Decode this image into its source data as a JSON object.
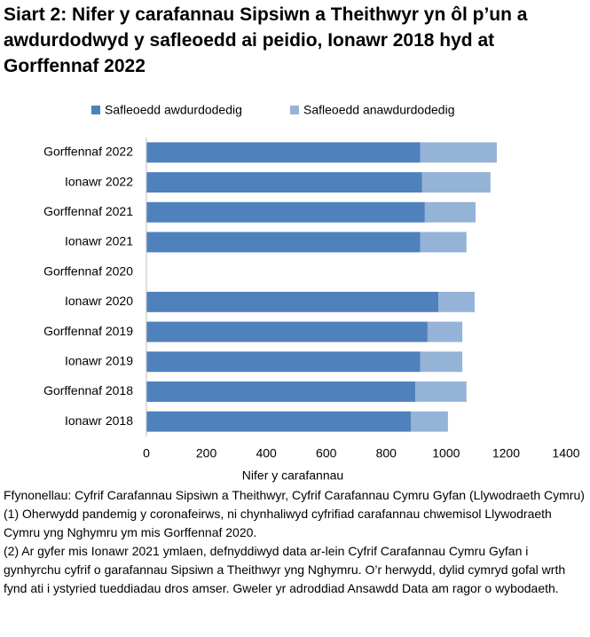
{
  "chart_data": {
    "type": "bar",
    "orientation": "horizontal",
    "stacked": true,
    "title": "Siart 2: Nifer y carafannau Sipsiwn a Theithwyr yn ôl p’un a awdurdodwyd y safleoedd ai peidio, Ionawr 2018 hyd at Gorffennaf 2022",
    "categories": [
      "Gorffennaf 2022",
      "Ionawr 2022",
      "Gorffennaf 2021",
      "Ionawr 2021",
      "Gorffennaf 2020",
      "Ionawr 2020",
      "Gorffennaf 2019",
      "Ionawr 2019",
      "Gorffennaf 2018",
      "Ionawr 2018"
    ],
    "series": [
      {
        "name": "Safleoedd awdurdodedig",
        "color": "#4f81bd",
        "values": [
          914,
          920,
          929,
          914,
          null,
          974,
          938,
          914,
          897,
          882
        ]
      },
      {
        "name": "Safleoedd anawdurdodedig",
        "color": "#95b3d7",
        "values": [
          255,
          228,
          169,
          154,
          null,
          121,
          116,
          140,
          171,
          124
        ]
      }
    ],
    "xlim": [
      0,
      1400
    ],
    "xticks": [
      0,
      200,
      400,
      600,
      800,
      1000,
      1200,
      1400
    ],
    "xlabel": "Nifer y carafannau",
    "grid": false,
    "legend": "top",
    "notes": [
      "Ffynonellau: Cyfrif Carafannau Sipsiwn a Theithwyr, Cyfrif Carafannau Cymru Gyfan (Llywodraeth Cymru)",
      "(1) Oherwydd pandemig y coronafeirws, ni chynhaliwyd cyfrifiad carafannau chwemisol Llywodraeth Cymru yng Nghymru ym mis Gorffennaf 2020.",
      "(2) Ar gyfer mis Ionawr 2021 ymlaen, defnyddiwyd data ar-lein Cyfrif Carafannau Cymru Gyfan i gynhyrchu cyfrif o garafannau Sipsiwn a Theithwyr yng Nghymru. O’r herwydd, dylid cymryd gofal wrth fynd ati i ystyried tueddiadau dros amser. Gweler yr adroddiad Ansawdd Data am ragor o wybodaeth."
    ]
  }
}
